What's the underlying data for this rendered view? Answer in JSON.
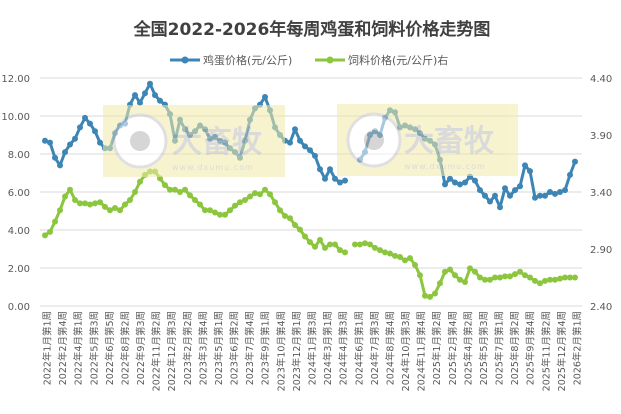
{
  "chart_data": {
    "type": "line",
    "title": "全国2022-2026年每周鸡蛋和饲料价格走势图",
    "legend_position": "top",
    "grid": true,
    "x_tick_labels": [
      "2022年1月第1周",
      "2022年2月第4周",
      "2022年4月第1周",
      "2022年5月第3周",
      "2022年6月第5周",
      "2022年8月第2周",
      "2022年9月第3周",
      "2022年11月第2周",
      "2022年12月第3周",
      "2023年2月第2周",
      "2023年3月第4周",
      "2023年5月第1周",
      "2023年6月第2周",
      "2023年7月第4周",
      "2023年9月第1周",
      "2023年10月第4周",
      "2023年12月第1周",
      "2024年1月第3周",
      "2024年3月第1周",
      "2024年4月第3周",
      "2024年6月第1周",
      "2024年7月第3周",
      "2024年8月第4周",
      "2024年10月第3周",
      "2024年11月第4周",
      "2025年1月第2周",
      "2025年2月第4周",
      "2025年4月第2周",
      "2025年5月第3周",
      "2025年7月第1周",
      "2025年8月第2周",
      "2025年9月第4周",
      "2025年11月第2周",
      "2025年12月第4周",
      "2026年2月第1周"
    ],
    "y_left": {
      "range": [
        0,
        12
      ],
      "ticks": [
        "0.00",
        "2.00",
        "4.00",
        "6.00",
        "8.00",
        "10.00",
        "12.00"
      ]
    },
    "y_right": {
      "range": [
        2.4,
        4.4
      ],
      "ticks": [
        "2.40",
        "2.90",
        "3.40",
        "3.90",
        "4.40"
      ]
    },
    "series": [
      {
        "name": "鸡蛋价格(元/公斤)",
        "axis": "left",
        "color": "#3d85b4",
        "values": [
          8.7,
          8.6,
          7.8,
          7.4,
          8.1,
          8.5,
          8.8,
          9.4,
          9.9,
          9.6,
          9.2,
          8.6,
          8.3,
          8.3,
          9.1,
          9.5,
          9.6,
          10.6,
          11.1,
          10.7,
          11.2,
          11.7,
          11.1,
          10.8,
          10.6,
          10.1,
          8.7,
          9.8,
          9.3,
          9.0,
          9.2,
          9.5,
          9.3,
          8.8,
          8.9,
          8.7,
          8.6,
          8.3,
          8.1,
          7.8,
          8.7,
          9.8,
          10.4,
          10.6,
          11.0,
          10.3,
          9.4,
          9.0,
          8.7,
          8.6,
          9.3,
          8.7,
          8.4,
          8.2,
          7.9,
          7.2,
          6.7,
          7.2,
          6.7,
          6.5,
          6.6,
          null,
          null,
          7.7,
          8.1,
          9.0,
          9.2,
          9.0,
          9.9,
          10.3,
          10.2,
          9.4,
          9.5,
          9.4,
          9.3,
          9.1,
          8.8,
          8.7,
          8.5,
          7.7,
          6.4,
          6.7,
          6.5,
          6.4,
          6.5,
          6.8,
          6.6,
          6.1,
          5.8,
          5.5,
          5.8,
          5.2,
          6.2,
          5.8,
          6.1,
          6.3,
          7.4,
          7.1,
          5.7,
          5.8,
          5.8,
          6.0,
          5.9,
          6.0,
          6.1,
          6.9,
          7.6
        ]
      },
      {
        "name": "饲料价格(元/公斤)右",
        "axis": "right",
        "color": "#8cc63f",
        "values": [
          3.02,
          3.05,
          3.14,
          3.24,
          3.36,
          3.42,
          3.33,
          3.3,
          3.3,
          3.29,
          3.3,
          3.31,
          3.27,
          3.24,
          3.26,
          3.24,
          3.29,
          3.33,
          3.4,
          3.49,
          3.55,
          3.58,
          3.58,
          3.52,
          3.46,
          3.42,
          3.42,
          3.4,
          3.42,
          3.37,
          3.33,
          3.29,
          3.24,
          3.24,
          3.22,
          3.2,
          3.2,
          3.24,
          3.28,
          3.31,
          3.33,
          3.36,
          3.39,
          3.38,
          3.42,
          3.38,
          3.31,
          3.24,
          3.19,
          3.17,
          3.11,
          3.07,
          3.01,
          2.96,
          2.92,
          2.98,
          2.91,
          2.94,
          2.94,
          2.89,
          2.87,
          null,
          2.94,
          2.94,
          2.95,
          2.94,
          2.91,
          2.89,
          2.87,
          2.86,
          2.84,
          2.83,
          2.8,
          2.82,
          2.76,
          2.67,
          2.49,
          2.48,
          2.51,
          2.6,
          2.7,
          2.72,
          2.67,
          2.63,
          2.61,
          2.73,
          2.7,
          2.65,
          2.63,
          2.63,
          2.65,
          2.65,
          2.66,
          2.66,
          2.68,
          2.7,
          2.67,
          2.65,
          2.62,
          2.6,
          2.62,
          2.63,
          2.63,
          2.64,
          2.65,
          2.65,
          2.65
        ]
      }
    ]
  },
  "watermark": {
    "brand": "大畜牧",
    "url": "www.dxumu.com"
  }
}
